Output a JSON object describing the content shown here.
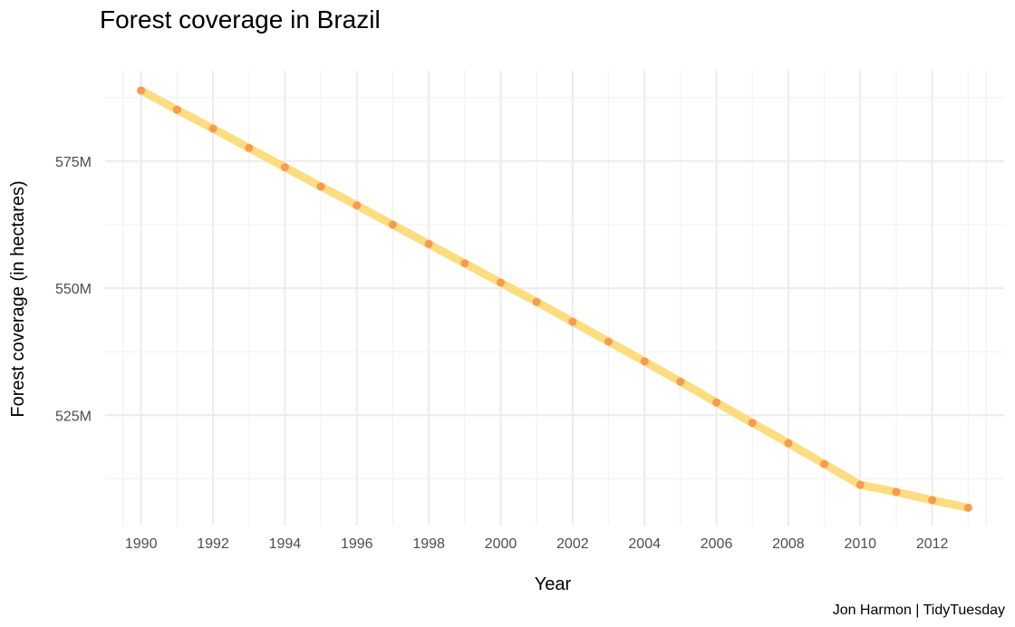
{
  "chart_data": {
    "type": "line",
    "title": "Forest coverage in Brazil",
    "xlabel": "Year",
    "ylabel": "Forest coverage (in hectares)",
    "caption": "Jon Harmon | TidyTuesday",
    "x": [
      1990,
      1991,
      1992,
      1993,
      1994,
      1995,
      1996,
      1997,
      1998,
      1999,
      2000,
      2001,
      2002,
      2003,
      2004,
      2005,
      2006,
      2007,
      2008,
      2009,
      2010,
      2011,
      2012,
      2013
    ],
    "series": [
      {
        "values": [
          588.9,
          585.1,
          581.4,
          577.6,
          573.8,
          570.0,
          566.3,
          562.5,
          558.7,
          554.9,
          551.1,
          547.3,
          543.4,
          539.5,
          535.6,
          531.6,
          527.5,
          523.5,
          519.5,
          515.4,
          511.3,
          509.9,
          508.3,
          506.8
        ],
        "unit": "M hectares"
      }
    ],
    "xticks": [
      "1990",
      "1992",
      "1994",
      "1996",
      "1998",
      "2000",
      "2002",
      "2004",
      "2006",
      "2008",
      "2010",
      "2012"
    ],
    "yticks": [
      "525M",
      "550M",
      "575M"
    ],
    "xlim": [
      1989,
      2014
    ],
    "ylim": [
      503.3,
      592.8
    ],
    "grid": true,
    "legend": "none",
    "colors": {
      "line": "#fddd7f",
      "points": "#f89a4f",
      "grid_major": "#ebebeb",
      "grid_minor": "#f2f2f2",
      "tick_text": "#4d4d4d"
    }
  }
}
